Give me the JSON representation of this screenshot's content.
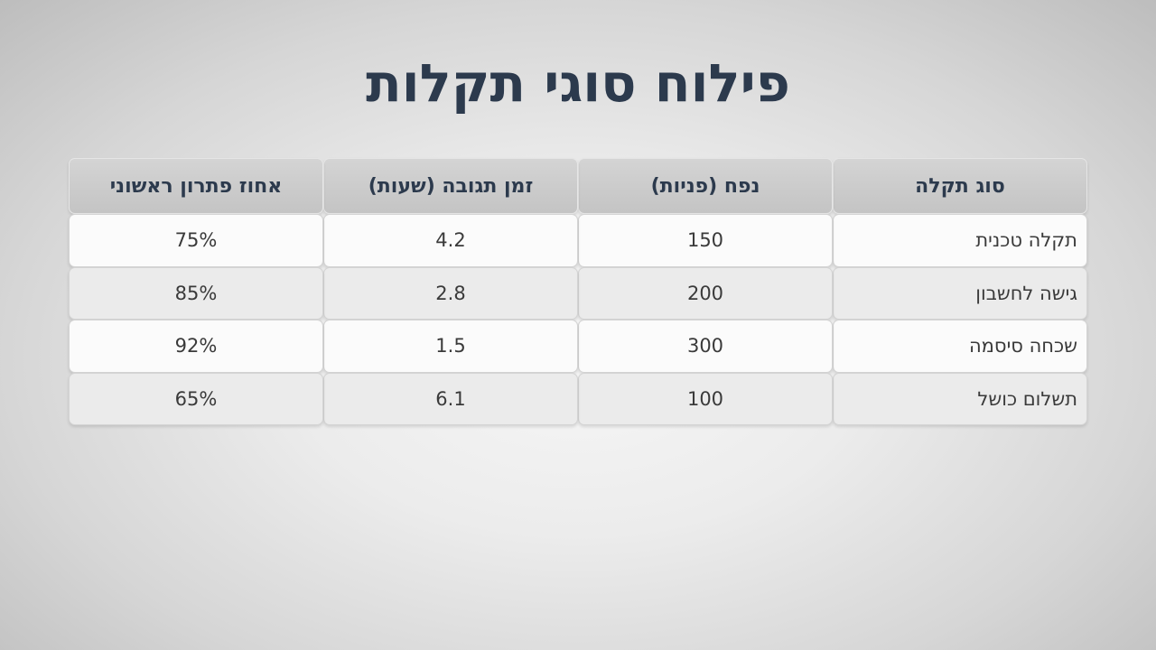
{
  "title": "פילוח סוגי תקלות",
  "table": {
    "headers": [
      "סוג תקלה",
      "נפח (פניות)",
      "זמן תגובה (שעות)",
      "אחוז פתרון ראשוני"
    ],
    "rows": [
      [
        "תקלה טכנית",
        "150",
        "4.2",
        "75%"
      ],
      [
        "גישה לחשבון",
        "200",
        "2.8",
        "85%"
      ],
      [
        "שכחה סיסמה",
        "300",
        "1.5",
        "92%"
      ],
      [
        "תשלום כושל",
        "100",
        "6.1",
        "65%"
      ]
    ]
  }
}
